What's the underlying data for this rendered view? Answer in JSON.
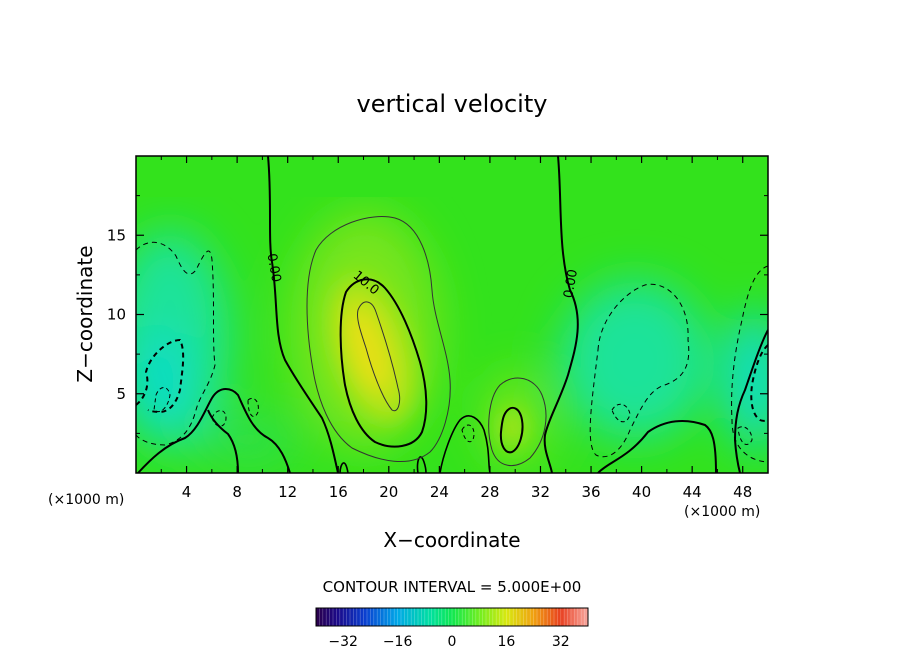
{
  "chart_data": {
    "type": "heatmap",
    "title": "vertical velocity",
    "xlabel": "X−coordinate",
    "ylabel": "Z−coordinate",
    "x_unit_left": "(×1000 m)",
    "x_unit_right": "(×1000 m)",
    "xlim": [
      0,
      50
    ],
    "ylim": [
      0,
      20
    ],
    "x_ticks": [
      4,
      8,
      12,
      16,
      20,
      24,
      28,
      32,
      36,
      40,
      44,
      48
    ],
    "y_ticks": [
      5,
      10,
      15
    ],
    "contour_interval_text": "CONTOUR INTERVAL = 5.000E+00",
    "contour_labels": [
      {
        "text": "0.00",
        "x": 10.6,
        "y": 12.9,
        "rotate": 80
      },
      {
        "text": "10.0",
        "x": 18.0,
        "y": 11.8,
        "rotate": 40
      },
      {
        "text": "0.00",
        "x": 34.7,
        "y": 11.9,
        "rotate": -80
      }
    ],
    "colorbar": {
      "min": -40,
      "max": 40,
      "ticks": [
        "−32",
        "−16",
        "0",
        "16",
        "32"
      ],
      "tick_values": [
        -32,
        -16,
        0,
        16,
        32
      ]
    },
    "field_features": [
      {
        "name": "main-updraft",
        "x": 19.0,
        "z": 8.0,
        "peak": 22
      },
      {
        "name": "secondary-updraft",
        "x": 29.8,
        "z": 3.0,
        "peak": 13
      },
      {
        "name": "left-downdraft",
        "x": 2.5,
        "z": 6.0,
        "peak": -12
      },
      {
        "name": "right-downdraft",
        "x": 48.5,
        "z": 6.0,
        "peak": -11
      }
    ]
  }
}
